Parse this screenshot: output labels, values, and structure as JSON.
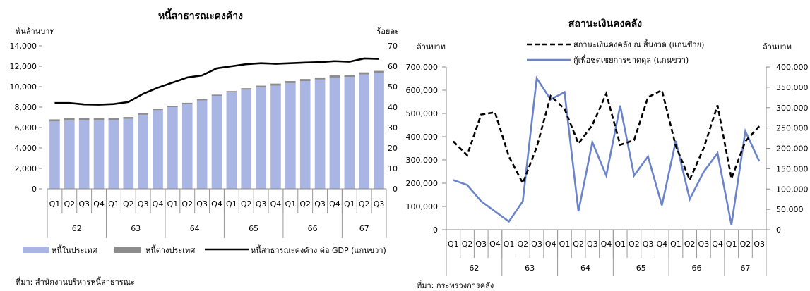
{
  "chart_data": [
    {
      "type": "bar",
      "title": "หนี้สาธารณะคงค้าง",
      "ylabel_left": "พันล้านบาท",
      "ylabel_right": "ร้อยละ",
      "ylim_left": [
        0,
        14000
      ],
      "ylim_right": [
        0,
        70
      ],
      "yticks_left": [
        "0",
        "2,000",
        "4,000",
        "6,000",
        "8,000",
        "10,000",
        "12,000",
        "14,000"
      ],
      "yticks_right": [
        "0",
        "10",
        "20",
        "30",
        "40",
        "50",
        "60",
        "70"
      ],
      "stacked": true,
      "categories": [
        "Q1",
        "Q2",
        "Q3",
        "Q4",
        "Q1",
        "Q2",
        "Q3",
        "Q4",
        "Q1",
        "Q2",
        "Q3",
        "Q4",
        "Q1",
        "Q2",
        "Q3",
        "Q4",
        "Q1",
        "Q2",
        "Q3",
        "Q4",
        "Q1",
        "Q2",
        "Q3"
      ],
      "year_groups": [
        {
          "label": "62",
          "count": 4
        },
        {
          "label": "63",
          "count": 4
        },
        {
          "label": "64",
          "count": 4
        },
        {
          "label": "65",
          "count": 4
        },
        {
          "label": "66",
          "count": 4
        },
        {
          "label": "67",
          "count": 3
        }
      ],
      "series": [
        {
          "name": "หนี้ในประเทศ",
          "axis": "left",
          "color": "#a9b6e3",
          "values": [
            6600,
            6700,
            6700,
            6700,
            6750,
            6850,
            7250,
            7700,
            8000,
            8300,
            8650,
            9100,
            9450,
            9700,
            9950,
            10100,
            10350,
            10550,
            10700,
            10900,
            10950,
            11200,
            11350
          ]
        },
        {
          "name": "หนี้ต่างประเทศ",
          "axis": "left",
          "color": "#8c8c8c",
          "values": [
            200,
            200,
            200,
            200,
            200,
            180,
            150,
            130,
            120,
            120,
            120,
            120,
            120,
            150,
            150,
            200,
            200,
            200,
            200,
            200,
            200,
            200,
            200
          ]
        },
        {
          "name": "หนี้สาธารณะคงค้าง ต่อ GDP (แกนขวา)",
          "axis": "right",
          "color": "#000000",
          "values": [
            42,
            42,
            41.3,
            41.2,
            41.5,
            42.5,
            46.5,
            49.5,
            52,
            54.5,
            55.5,
            59,
            60,
            61,
            61.5,
            61.2,
            61.5,
            61.8,
            62,
            62.5,
            62.2,
            63.8,
            63.6
          ]
        }
      ],
      "source": "ที่มา: สำนักงานบริหารหนี้สาธารณะ"
    },
    {
      "type": "line",
      "title": "สถานะเงินคงคลัง",
      "ylabel_left": "ล้านบาท",
      "ylabel_right": "ล้านบาท",
      "ylim_left": [
        0,
        700000
      ],
      "ylim_right": [
        0,
        400000
      ],
      "yticks_left": [
        "0",
        "100,000",
        "200,000",
        "300,000",
        "400,000",
        "500,000",
        "600,000",
        "700,000"
      ],
      "yticks_right": [
        "0",
        "50,000",
        "100,000",
        "150,000",
        "200,000",
        "250,000",
        "300,000",
        "350,000",
        "400,000"
      ],
      "categories": [
        "Q1",
        "Q2",
        "Q3",
        "Q4",
        "Q1",
        "Q2",
        "Q3",
        "Q4",
        "Q1",
        "Q2",
        "Q3",
        "Q4",
        "Q1",
        "Q2",
        "Q3",
        "Q4",
        "Q1",
        "Q2",
        "Q3",
        "Q4",
        "Q1",
        "Q2",
        "Q3"
      ],
      "year_groups": [
        {
          "label": "62",
          "count": 4
        },
        {
          "label": "63",
          "count": 4
        },
        {
          "label": "64",
          "count": 4
        },
        {
          "label": "65",
          "count": 4
        },
        {
          "label": "66",
          "count": 4
        },
        {
          "label": "67",
          "count": 3
        }
      ],
      "series": [
        {
          "name": "สถานะเงินคงคลัง ณ สิ้นงวด (แกนซ้าย)",
          "axis": "left",
          "color": "#000000",
          "dash": true,
          "values": [
            380000,
            320000,
            495000,
            505000,
            315000,
            200000,
            355000,
            575000,
            520000,
            370000,
            450000,
            585000,
            365000,
            385000,
            570000,
            600000,
            360000,
            215000,
            350000,
            535000,
            220000,
            380000,
            445000
          ]
        },
        {
          "name": "กู้เพื่อชดเชยการขาดดุล (แกนขวา)",
          "axis": "right",
          "color": "#6b83c9",
          "dash": false,
          "values": [
            122000,
            110000,
            70000,
            45000,
            20000,
            70000,
            372000,
            320000,
            338000,
            45000,
            215000,
            133000,
            305000,
            133000,
            180000,
            60000,
            218000,
            75000,
            142000,
            188000,
            12000,
            242000,
            168000
          ]
        }
      ],
      "source": "ที่มา: กระทรวงการคลัง"
    }
  ]
}
